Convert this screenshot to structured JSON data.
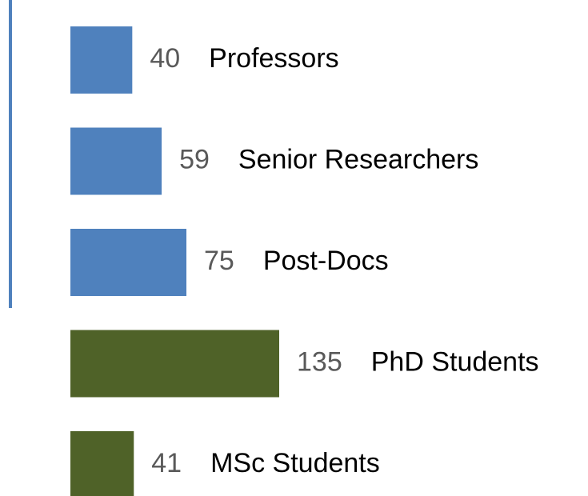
{
  "chart_data": {
    "type": "hbar",
    "categories": [
      "Professors",
      "Senior Researchers",
      "Post-Docs",
      "PhD Students",
      "MSc Students"
    ],
    "values": [
      40,
      59,
      75,
      135,
      41
    ],
    "colors": [
      "#4f81bd",
      "#4f81bd",
      "#4f81bd",
      "#4f6228",
      "#4f6228"
    ]
  }
}
